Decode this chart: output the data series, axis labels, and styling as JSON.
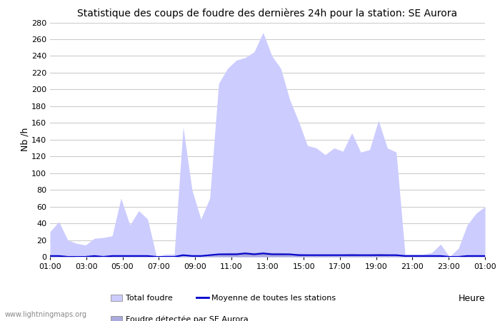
{
  "title": "Statistique des coups de foudre des dernières 24h pour la station: SE Aurora",
  "ylabel": "Nb /h",
  "xlabel": "Heure",
  "watermark": "www.lightningmaps.org",
  "ylim": [
    0,
    280
  ],
  "ytick_values": [
    0,
    20,
    40,
    60,
    80,
    100,
    120,
    140,
    160,
    180,
    200,
    220,
    240,
    260,
    280
  ],
  "x_labels": [
    "01:00",
    "03:00",
    "05:00",
    "07:00",
    "09:00",
    "11:00",
    "13:00",
    "15:00",
    "17:00",
    "19:00",
    "21:00",
    "23:00",
    "01:00"
  ],
  "total_foudre_color": "#ccccff",
  "local_foudre_color": "#aaaadd",
  "moyenne_color": "#0000cc",
  "bg_color": "#ffffff",
  "grid_color": "#cccccc",
  "total_foudre": [
    30,
    42,
    20,
    16,
    14,
    22,
    23,
    25,
    70,
    38,
    55,
    45,
    0,
    3,
    3,
    155,
    80,
    45,
    70,
    207,
    225,
    235,
    238,
    245,
    268,
    240,
    225,
    188,
    162,
    133,
    130,
    122,
    130,
    126,
    148,
    125,
    128,
    163,
    130,
    125,
    3,
    3,
    3,
    5,
    15,
    0,
    10,
    38,
    52,
    60
  ],
  "local_foudre": [
    1,
    2,
    1,
    0,
    0,
    1,
    0,
    1,
    2,
    1,
    1,
    1,
    0,
    0,
    0,
    3,
    2,
    1,
    2,
    4,
    5,
    5,
    6,
    5,
    6,
    5,
    5,
    4,
    4,
    3,
    3,
    3,
    3,
    3,
    4,
    3,
    3,
    4,
    3,
    3,
    1,
    1,
    1,
    1,
    1,
    0,
    0,
    1,
    1,
    2
  ],
  "moyenne": [
    1,
    1,
    0,
    0,
    0,
    1,
    0,
    1,
    1,
    1,
    1,
    1,
    0,
    0,
    0,
    2,
    1,
    1,
    2,
    3,
    3,
    3,
    4,
    3,
    4,
    3,
    3,
    3,
    2,
    2,
    2,
    2,
    2,
    2,
    2,
    2,
    2,
    2,
    2,
    2,
    1,
    1,
    1,
    1,
    1,
    0,
    0,
    1,
    1,
    1
  ],
  "n_points": 50
}
